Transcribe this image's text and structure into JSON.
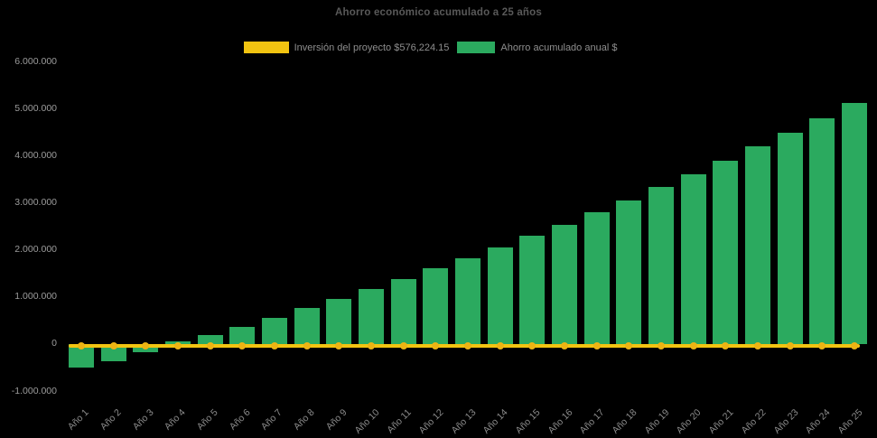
{
  "chart_data": {
    "type": "bar",
    "title": "Ahorro económico acumulado a 25 años",
    "categories": [
      "Año 1",
      "Año 2",
      "Año 3",
      "Año 4",
      "Año 5",
      "Año 6",
      "Año 7",
      "Año 8",
      "Año 9",
      "Año 10",
      "Año 11",
      "Año 12",
      "Año 13",
      "Año 14",
      "Año 15",
      "Año 16",
      "Año 17",
      "Año 18",
      "Año 19",
      "Año 20",
      "Año 21",
      "Año 22",
      "Año 23",
      "Año 24",
      "Año 25"
    ],
    "series": [
      {
        "name": "Inversión del proyecto $576,224.15",
        "type": "line",
        "color": "#F2C411",
        "marker_color": "#EDB414",
        "constant_value": 0
      },
      {
        "name": "Ahorro acumulado anual $",
        "type": "bar",
        "color": "#2BAA5F",
        "values": [
          -500000,
          -360000,
          -180000,
          60000,
          190000,
          370000,
          550000,
          770000,
          950000,
          1170000,
          1380000,
          1600000,
          1810000,
          2050000,
          2300000,
          2530000,
          2800000,
          3050000,
          3330000,
          3600000,
          3900000,
          4190000,
          4480000,
          4790000,
          5120000
        ]
      }
    ],
    "ylim": [
      -1000000,
      6000000
    ],
    "ytick_step": 1000000,
    "ytick_labels": [
      "6.000.000",
      "5.000.000",
      "4.000.000",
      "3.000.000",
      "2.000.000",
      "1.000.000",
      "0",
      "-1.000.000"
    ],
    "grid": false,
    "legend_position": "top",
    "background_color": "#000000"
  }
}
